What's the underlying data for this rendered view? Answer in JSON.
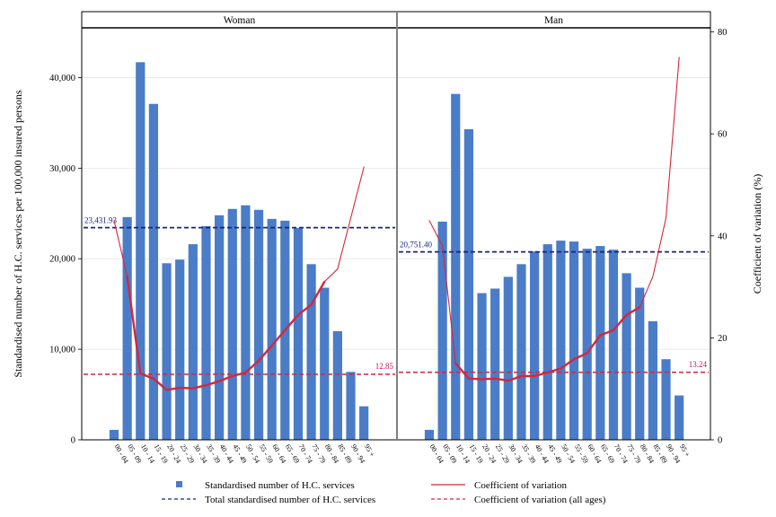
{
  "chart_data": {
    "type": "bar",
    "panels": [
      "Woman",
      "Man"
    ],
    "categories": [
      "00-04",
      "05-09",
      "10-14",
      "15-19",
      "20-24",
      "25-29",
      "30-34",
      "35-39",
      "40-44",
      "45-49",
      "50-54",
      "55-59",
      "60-64",
      "65-69",
      "70-74",
      "75-79",
      "80-84",
      "85-89",
      "90-94",
      "95+"
    ],
    "tick_labels": [
      "00 - 04",
      "05 - 09",
      "10 - 14",
      "15 - 19",
      "20 - 24",
      "25 - 29",
      "30 - 34",
      "35 - 39",
      "40 - 44",
      "45 - 49",
      "50 - 54",
      "55 - 59",
      "60 - 64",
      "65 - 69",
      "70 - 74",
      "75 - 79",
      "80 - 84",
      "85 - 89",
      "90 - 94",
      "95 +"
    ],
    "ylabel": "Standardised number of H.C. services per 100,000 insured persons",
    "y2label": "Coefficient of variation (%)",
    "ylim": [
      0,
      45500
    ],
    "y2lim": [
      0,
      80.8
    ],
    "yticks": [
      0,
      10000,
      20000,
      30000,
      40000
    ],
    "ytick_labels": [
      "0",
      "10,000",
      "20,000",
      "30,000",
      "40,000"
    ],
    "y2ticks": [
      0,
      20,
      40,
      60,
      80
    ],
    "y2tick_labels": [
      "0",
      "20",
      "40",
      "60",
      "80"
    ],
    "series": [
      {
        "panel": "Woman",
        "services": [
          1100,
          24600,
          41700,
          37100,
          19500,
          19900,
          21600,
          23600,
          24800,
          25500,
          25900,
          25400,
          24400,
          24200,
          23400,
          19400,
          16800,
          12000,
          7500,
          3700
        ],
        "cv_bold": [
          null,
          32,
          13,
          12,
          9.8,
          10.2,
          10.1,
          10.7,
          11.5,
          12.5,
          13.2,
          15.5,
          18.5,
          21.5,
          24.5,
          26.5,
          31,
          null,
          null,
          null
        ],
        "cv_thin": [
          43,
          32,
          null,
          null,
          null,
          null,
          null,
          null,
          null,
          null,
          null,
          null,
          null,
          null,
          null,
          null,
          31,
          33.5,
          43.5,
          53.5
        ],
        "total": 23431.93,
        "total_label": "23,431.93",
        "cv_all": 12.85,
        "cv_all_label": "12.85"
      },
      {
        "panel": "Man",
        "services": [
          1100,
          24100,
          38200,
          34300,
          16200,
          16700,
          18000,
          19400,
          20800,
          21600,
          22000,
          21900,
          21100,
          21400,
          21000,
          18400,
          16800,
          13100,
          8900,
          4900
        ],
        "cv_bold": [
          null,
          null,
          15,
          12,
          11.9,
          12,
          11.6,
          12.5,
          12.5,
          13.2,
          14,
          15.8,
          17,
          20.5,
          21.5,
          24.5,
          26,
          null,
          null,
          null
        ],
        "cv_thin": [
          43,
          38,
          15,
          null,
          null,
          null,
          null,
          null,
          null,
          null,
          null,
          null,
          null,
          null,
          null,
          null,
          26,
          32,
          43.5,
          75
        ],
        "total": 20751.4,
        "total_label": "20,751.40",
        "cv_all": 13.24,
        "cv_all_label": "13.24"
      }
    ],
    "legend": [
      {
        "key": "bar",
        "label": "Standardised number of H.C. services"
      },
      {
        "key": "cv",
        "label": "Coefficient of variation"
      },
      {
        "key": "total",
        "label": "Total standardised number of H.C. services"
      },
      {
        "key": "cv_all",
        "label": "Coefficient of variation (all ages)"
      }
    ],
    "legend_position": "bottom",
    "grid": true,
    "colors": {
      "bar": "#4a7cc7",
      "cv_line": "#d7263d",
      "total_line": "#1a237e",
      "cv_all_line": "#d7263d",
      "total_label": "#1a237e",
      "cv_all_label": "#c2185b",
      "frame": "#000000",
      "grid": "#d9d9d9",
      "panel_divider": "#808080"
    }
  }
}
